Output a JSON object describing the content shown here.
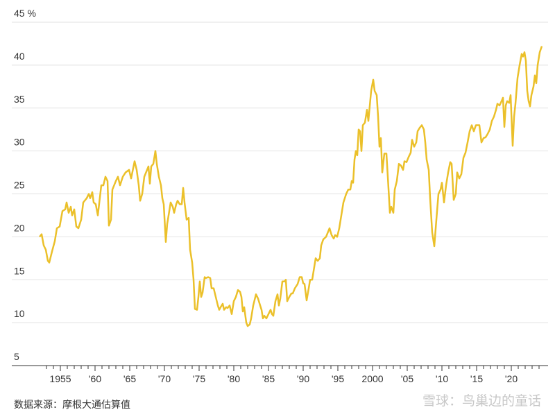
{
  "chart_data": {
    "type": "line",
    "source": "数据来源：摩根大通估算值",
    "watermark": "雪球：鸟巢边的童话",
    "color": "#ebc02a",
    "grid": true,
    "xlim": [
      1948,
      2025.3
    ],
    "ylim": [
      5,
      45
    ],
    "yticks": [
      5,
      10,
      15,
      20,
      25,
      30,
      35,
      40,
      {
        "value": 45,
        "label": "45 %"
      }
    ],
    "xticks": [
      1955,
      {
        "value": 1960,
        "label": "'60"
      },
      {
        "value": 1965,
        "label": "'65"
      },
      {
        "value": 1970,
        "label": "'70"
      },
      {
        "value": 1975,
        "label": "'75"
      },
      {
        "value": 1980,
        "label": "'80"
      },
      {
        "value": 1985,
        "label": "'85"
      },
      {
        "value": 1990,
        "label": "'90"
      },
      {
        "value": 1995,
        "label": "'95"
      },
      2000,
      {
        "value": 2005,
        "label": "'05"
      },
      {
        "value": 2010,
        "label": "'10"
      },
      {
        "value": 2015,
        "label": "'15"
      },
      {
        "value": 2020,
        "label": "'20"
      }
    ],
    "xminorticks": [
      1953,
      1954,
      1955,
      1956,
      1957,
      1958,
      1959,
      1960,
      1961,
      1962,
      1963,
      1964,
      1965,
      1966,
      1967,
      1968,
      1969,
      1970,
      1971,
      1972,
      1973,
      1974,
      1975,
      1976,
      1977,
      1978,
      1979,
      1980,
      1981,
      1982,
      1983,
      1984,
      1985,
      1986,
      1987,
      1988,
      1989,
      1990,
      1991,
      1992,
      1993,
      1994,
      1995,
      1996,
      1997,
      1998,
      1999,
      2000,
      2001,
      2002,
      2003,
      2004,
      2005,
      2006,
      2007,
      2008,
      2009,
      2010,
      2011,
      2012,
      2013,
      2014,
      2015,
      2016,
      2017,
      2018,
      2019,
      2020,
      2021,
      2022,
      2023,
      2024
    ],
    "x": [
      1952.0,
      1952.3,
      1952.6,
      1952.9,
      1953.2,
      1953.4,
      1953.8,
      1954.2,
      1954.5,
      1954.9,
      1955.3,
      1955.7,
      1955.9,
      1956.2,
      1956.5,
      1956.7,
      1957.0,
      1957.3,
      1957.6,
      1958.0,
      1958.3,
      1958.8,
      1959.1,
      1959.3,
      1959.6,
      1959.8,
      1960.1,
      1960.4,
      1960.9,
      1961.2,
      1961.5,
      1961.8,
      1962.0,
      1962.3,
      1962.5,
      1963.0,
      1963.3,
      1963.6,
      1964.0,
      1964.4,
      1964.9,
      1965.2,
      1965.5,
      1965.7,
      1966.0,
      1966.3,
      1966.5,
      1966.8,
      1967.1,
      1967.5,
      1967.7,
      1967.9,
      1968.1,
      1968.4,
      1968.7,
      1968.9,
      1969.2,
      1969.5,
      1969.7,
      1969.9,
      1970.2,
      1970.4,
      1970.7,
      1970.9,
      1971.2,
      1971.4,
      1971.7,
      1971.9,
      1972.2,
      1972.5,
      1972.7,
      1972.9,
      1973.2,
      1973.5,
      1973.7,
      1974.0,
      1974.2,
      1974.4,
      1974.7,
      1974.9,
      1975.1,
      1975.3,
      1975.5,
      1975.8,
      1976.0,
      1976.3,
      1976.6,
      1976.8,
      1977.1,
      1977.4,
      1977.7,
      1977.9,
      1978.1,
      1978.4,
      1978.6,
      1978.9,
      1979.1,
      1979.4,
      1979.7,
      1980.0,
      1980.3,
      1980.6,
      1980.9,
      1981.1,
      1981.3,
      1981.5,
      1981.8,
      1982.0,
      1982.3,
      1982.5,
      1982.8,
      1983.2,
      1983.5,
      1983.8,
      1984.0,
      1984.2,
      1984.4,
      1984.7,
      1985.0,
      1985.3,
      1985.5,
      1985.7,
      1986.0,
      1986.3,
      1986.5,
      1986.7,
      1987.0,
      1987.3,
      1987.5,
      1987.7,
      1988.0,
      1988.3,
      1988.5,
      1988.8,
      1989.2,
      1989.5,
      1989.8,
      1990.0,
      1990.2,
      1990.5,
      1990.8,
      1991.0,
      1991.3,
      1991.5,
      1991.8,
      1992.1,
      1992.4,
      1992.6,
      1992.9,
      1993.3,
      1993.6,
      1993.8,
      1994.1,
      1994.4,
      1994.6,
      1994.9,
      1995.2,
      1995.5,
      1995.8,
      1996.2,
      1996.5,
      1996.8,
      1997.0,
      1997.2,
      1997.4,
      1997.6,
      1997.8,
      1998.0,
      1998.2,
      1998.4,
      1998.6,
      1998.9,
      1999.2,
      1999.4,
      1999.8,
      2000.1,
      2000.3,
      2000.6,
      2000.8,
      2001.0,
      2001.2,
      2001.4,
      2001.7,
      2002.0,
      2002.2,
      2002.5,
      2002.7,
      2003.0,
      2003.2,
      2003.5,
      2003.8,
      2004.1,
      2004.4,
      2004.6,
      2004.9,
      2005.2,
      2005.5,
      2005.7,
      2006.0,
      2006.3,
      2006.5,
      2006.8,
      2007.1,
      2007.4,
      2007.6,
      2007.8,
      2008.1,
      2008.3,
      2008.6,
      2008.9,
      2009.2,
      2009.5,
      2009.8,
      2010.0,
      2010.3,
      2010.6,
      2010.9,
      2011.2,
      2011.4,
      2011.7,
      2012.0,
      2012.2,
      2012.5,
      2012.8,
      2013.1,
      2013.4,
      2013.7,
      2014.0,
      2014.3,
      2014.6,
      2014.9,
      2015.2,
      2015.4,
      2015.7,
      2016.0,
      2016.3,
      2016.6,
      2016.9,
      2017.2,
      2017.5,
      2017.8,
      2018.0,
      2018.3,
      2018.6,
      2018.8,
      2019.0,
      2019.2,
      2019.4,
      2019.7,
      2019.9,
      2020.2,
      2020.4,
      2020.6,
      2020.9,
      2021.2,
      2021.5,
      2021.7,
      2021.9,
      2022.1,
      2022.3,
      2022.5,
      2022.7,
      2022.9,
      2023.2,
      2023.4,
      2023.6,
      2023.8,
      2024.1,
      2024.4
    ],
    "values": [
      20.0,
      20.3,
      19.0,
      18.5,
      17.2,
      17.0,
      18.3,
      19.5,
      21.0,
      21.2,
      23.0,
      23.2,
      24.0,
      22.8,
      23.5,
      22.5,
      23.2,
      21.2,
      21.0,
      22.0,
      24.0,
      24.5,
      25.0,
      24.5,
      25.2,
      24.0,
      23.8,
      22.5,
      26.0,
      26.0,
      27.0,
      26.5,
      21.3,
      22.0,
      25.5,
      26.5,
      27.0,
      26.0,
      27.0,
      27.5,
      27.8,
      26.8,
      28.0,
      28.8,
      27.8,
      26.0,
      24.2,
      25.0,
      27.0,
      27.8,
      28.2,
      26.2,
      28.2,
      28.5,
      30.0,
      28.5,
      27.0,
      26.0,
      24.5,
      23.8,
      19.4,
      21.5,
      23.0,
      24.0,
      23.5,
      22.8,
      23.8,
      24.2,
      23.8,
      23.8,
      25.7,
      24.0,
      22.0,
      22.2,
      18.5,
      17.0,
      15.0,
      11.6,
      11.5,
      13.0,
      14.8,
      13.0,
      13.5,
      15.3,
      15.2,
      15.3,
      15.2,
      14.0,
      14.0,
      13.0,
      12.0,
      11.5,
      11.8,
      12.2,
      11.5,
      11.8,
      11.7,
      12.0,
      11.0,
      12.5,
      13.0,
      13.8,
      13.6,
      13.0,
      11.3,
      11.8,
      10.0,
      9.6,
      9.8,
      10.5,
      12.0,
      13.3,
      12.8,
      12.0,
      11.5,
      10.5,
      10.8,
      10.5,
      11.0,
      11.5,
      11.0,
      10.8,
      12.5,
      13.3,
      12.0,
      12.8,
      14.8,
      14.8,
      15.0,
      12.5,
      13.0,
      13.4,
      13.4,
      14.0,
      14.5,
      15.3,
      15.3,
      14.6,
      14.5,
      12.6,
      14.0,
      15.0,
      15.0,
      16.0,
      17.5,
      17.2,
      17.5,
      19.0,
      19.7,
      20.0,
      20.6,
      21.0,
      20.2,
      19.8,
      20.2,
      20.0,
      21.0,
      22.5,
      24.0,
      25.0,
      25.5,
      25.5,
      26.5,
      26.3,
      29.0,
      30.0,
      29.5,
      32.5,
      32.3,
      30.0,
      33.0,
      33.3,
      34.8,
      33.5,
      37.0,
      38.3,
      37.0,
      36.5,
      34.0,
      30.5,
      31.5,
      27.5,
      29.7,
      29.7,
      27.0,
      22.8,
      23.5,
      22.8,
      25.5,
      26.5,
      28.5,
      28.3,
      27.8,
      28.8,
      28.7,
      29.3,
      29.8,
      31.3,
      30.5,
      31.0,
      32.3,
      32.7,
      33.0,
      32.5,
      31.0,
      29.0,
      27.8,
      24.5,
      20.5,
      18.9,
      22.0,
      25.0,
      25.5,
      26.3,
      24.0,
      26.0,
      27.5,
      28.7,
      28.5,
      24.3,
      25.0,
      27.5,
      26.8,
      27.3,
      29.2,
      29.8,
      31.0,
      32.3,
      33.0,
      32.3,
      33.0,
      33.0,
      33.0,
      31.0,
      31.5,
      31.6,
      32.0,
      32.5,
      33.5,
      34.0,
      34.8,
      35.5,
      35.3,
      35.8,
      36.2,
      32.8,
      35.3,
      35.8,
      35.6,
      36.5,
      30.6,
      34.0,
      35.5,
      38.5,
      40.0,
      41.3,
      41.0,
      41.5,
      40.5,
      37.0,
      35.8,
      35.2,
      36.5,
      37.5,
      38.8,
      37.9,
      40.0,
      41.5,
      42.2
    ]
  }
}
